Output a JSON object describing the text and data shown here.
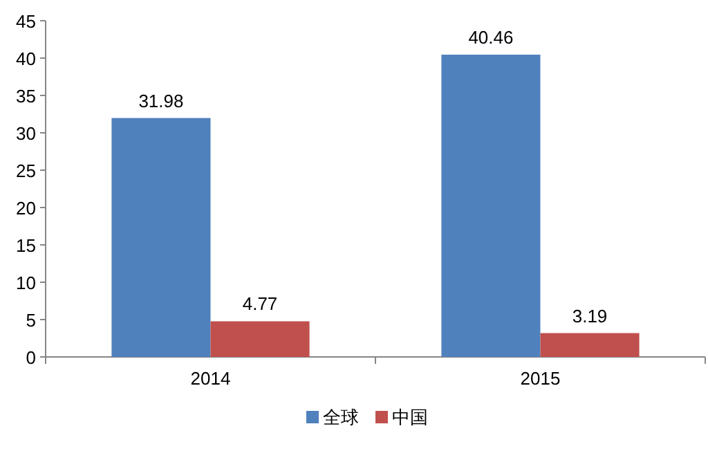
{
  "chart_data": {
    "type": "bar",
    "categories": [
      "2014",
      "2015"
    ],
    "series": [
      {
        "name": "全球",
        "color": "#4f81bd",
        "values": [
          31.98,
          40.46
        ]
      },
      {
        "name": "中国",
        "color": "#c0504d",
        "values": [
          4.77,
          3.19
        ]
      }
    ],
    "ylim": [
      0,
      45
    ],
    "yticks": [
      0,
      5,
      10,
      15,
      20,
      25,
      30,
      35,
      40,
      45
    ],
    "data_labels": true,
    "legend": "bottom"
  }
}
